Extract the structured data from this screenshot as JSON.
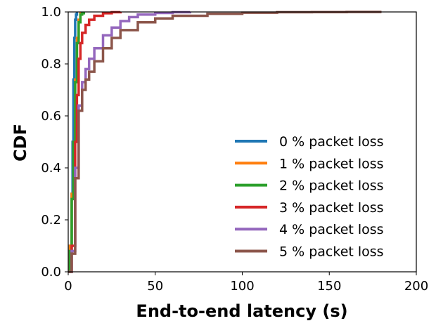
{
  "chart_data": {
    "type": "line",
    "title": "",
    "xlabel": "End-to-end latency (s)",
    "ylabel": "CDF",
    "xlim": [
      0,
      200
    ],
    "ylim": [
      0,
      1
    ],
    "xticks": [
      0,
      50,
      100,
      150,
      200
    ],
    "yticks": [
      0.0,
      0.2,
      0.4,
      0.6,
      0.8,
      1.0
    ],
    "xtick_labels": [
      "0",
      "50",
      "100",
      "150",
      "200"
    ],
    "ytick_labels": [
      "0.0",
      "0.2",
      "0.4",
      "0.6",
      "0.8",
      "1.0"
    ],
    "grid": false,
    "legend_position": "lower-right",
    "series": [
      {
        "name": "0 % packet loss",
        "color": "#1f77b4",
        "x": [
          0,
          1,
          2,
          2.5,
          3,
          3.5,
          4,
          4.5,
          5
        ],
        "y": [
          0,
          0.1,
          0.3,
          0.5,
          0.74,
          0.9,
          0.97,
          0.99,
          1.0
        ]
      },
      {
        "name": "1 % packet loss",
        "color": "#ff7f0e",
        "x": [
          0,
          1,
          2,
          3,
          4,
          5,
          6,
          7
        ],
        "y": [
          0,
          0.1,
          0.3,
          0.5,
          0.74,
          0.9,
          0.97,
          1.0
        ]
      },
      {
        "name": "2 % packet loss",
        "color": "#2ca02c",
        "x": [
          0,
          1,
          2,
          3,
          4,
          5,
          6,
          7,
          8,
          9
        ],
        "y": [
          0,
          0.08,
          0.28,
          0.5,
          0.73,
          0.88,
          0.96,
          0.99,
          0.995,
          1.0
        ]
      },
      {
        "name": "3 % packet loss",
        "color": "#d62728",
        "x": [
          0,
          2,
          4,
          5,
          6,
          7,
          8,
          10,
          12,
          15,
          20,
          25,
          30
        ],
        "y": [
          0,
          0.1,
          0.5,
          0.68,
          0.82,
          0.88,
          0.92,
          0.95,
          0.97,
          0.985,
          0.995,
          0.999,
          1.0
        ]
      },
      {
        "name": "4 % packet loss",
        "color": "#9467bd",
        "x": [
          0,
          2,
          4,
          6,
          8,
          10,
          12,
          15,
          20,
          25,
          30,
          35,
          40,
          50,
          60,
          70
        ],
        "y": [
          0,
          0.08,
          0.4,
          0.64,
          0.73,
          0.78,
          0.82,
          0.86,
          0.91,
          0.94,
          0.965,
          0.98,
          0.99,
          0.996,
          0.999,
          1.0
        ]
      },
      {
        "name": "5 % packet loss",
        "color": "#8c564b",
        "x": [
          0,
          2,
          4,
          6,
          8,
          10,
          12,
          15,
          20,
          25,
          30,
          40,
          50,
          60,
          80,
          100,
          120,
          140,
          160,
          180
        ],
        "y": [
          0,
          0.07,
          0.36,
          0.62,
          0.7,
          0.74,
          0.77,
          0.81,
          0.86,
          0.9,
          0.93,
          0.96,
          0.975,
          0.985,
          0.993,
          0.997,
          0.999,
          0.9995,
          1.0,
          1.0
        ]
      }
    ]
  }
}
